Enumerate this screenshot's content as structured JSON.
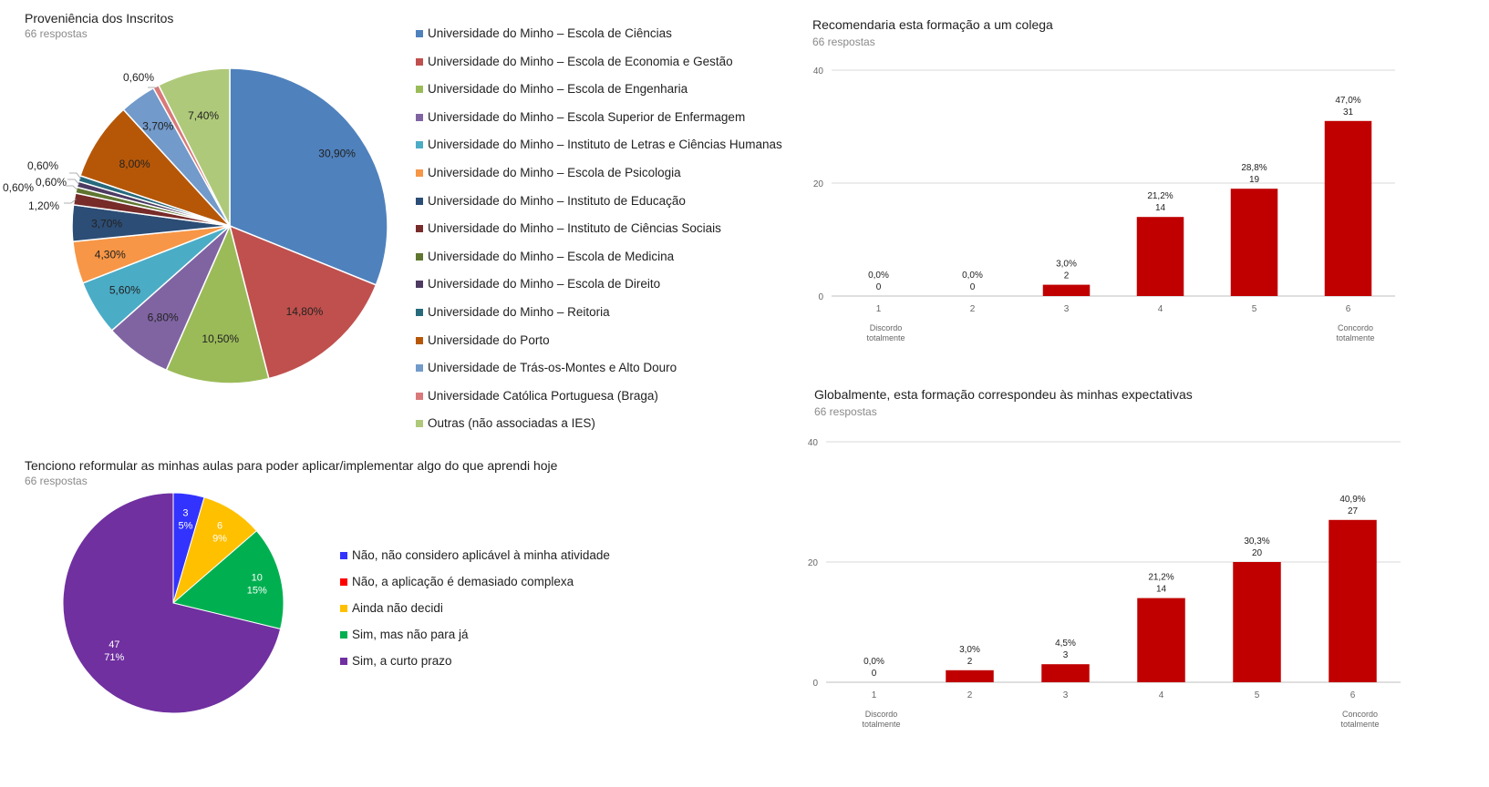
{
  "charts": {
    "provenance": {
      "title": "Proveniência dos Inscritos",
      "subtitle": "66 respostas"
    },
    "reformular": {
      "title": "Tenciono reformular as minhas aulas para poder aplicar/implementar algo do que aprendi hoje",
      "subtitle": "66 respostas"
    },
    "recomendaria": {
      "title": "Recomendaria esta formação a um colega",
      "subtitle": "66 respostas"
    },
    "expectativas": {
      "title": "Globalmente, esta formação correspondeu às minhas expectativas",
      "subtitle": "66 respostas"
    }
  },
  "chart_data": [
    {
      "type": "pie",
      "title": "Proveniência dos Inscritos",
      "subtitle": "66 respostas",
      "labels": [
        "Universidade do Minho – Escola de Ciências",
        "Universidade do Minho – Escola de Economia e Gestão",
        "Universidade do Minho – Escola de Engenharia",
        "Universidade do Minho – Escola Superior de Enfermagem",
        "Universidade do Minho – Instituto de Letras e Ciências Humanas",
        "Universidade do Minho – Escola de Psicologia",
        "Universidade do Minho – Instituto de Educação",
        "Universidade do Minho – Instituto de Ciências Sociais",
        "Universidade do Minho – Escola de Medicina",
        "Universidade do Minho – Escola de Direito",
        "Universidade do Minho – Reitoria",
        "Universidade do Porto",
        "Universidade de Trás-os-Montes e Alto Douro",
        "Universidade Católica Portuguesa (Braga)",
        "Outras (não associadas a IES)"
      ],
      "values": [
        30.9,
        14.8,
        10.5,
        6.8,
        5.6,
        4.3,
        3.7,
        1.2,
        0.6,
        0.6,
        0.6,
        8.0,
        3.7,
        0.6,
        7.4
      ],
      "value_labels": [
        "30,90%",
        "14,80%",
        "10,50%",
        "6,80%",
        "5,60%",
        "4,30%",
        "3,70%",
        "1,20%",
        "0,60%",
        "0,60%",
        "0,60%",
        "8,00%",
        "3,70%",
        "0,60%",
        "7,40%"
      ],
      "colors": [
        "#4f81bd",
        "#c0504d",
        "#9bbb59",
        "#8064a2",
        "#4bacc6",
        "#f79646",
        "#2c4d75",
        "#772c2a",
        "#5f7530",
        "#4d3b62",
        "#276a7c",
        "#b65708",
        "#729aca",
        "#d9797a",
        "#afc97a"
      ],
      "legend": "right"
    },
    {
      "type": "pie",
      "title": "Tenciono reformular as minhas aulas para poder aplicar/implementar algo do que aprendi hoje",
      "subtitle": "66 respostas",
      "labels": [
        "Não, não considero aplicável à minha atividade",
        "Não, a aplicação é demasiado complexa",
        "Ainda não decidi",
        "Sim, mas não para já",
        "Sim, a curto prazo"
      ],
      "values": [
        3,
        0,
        6,
        10,
        47
      ],
      "percent_labels": [
        "5%",
        "0%",
        "9%",
        "15%",
        "71%"
      ],
      "colors": [
        "#3333ff",
        "#ff0000",
        "#ffc000",
        "#00b050",
        "#7030a0"
      ],
      "legend": "right"
    },
    {
      "type": "bar",
      "title": "Recomendaria esta formação a um colega",
      "subtitle": "66 respostas",
      "categories": [
        "1",
        "2",
        "3",
        "4",
        "5",
        "6"
      ],
      "category_notes": [
        "Discordo totalmente",
        "",
        "",
        "",
        "",
        "Concordo totalmente"
      ],
      "values": [
        0,
        0,
        2,
        14,
        19,
        31
      ],
      "percent_labels": [
        "0,0%",
        "0,0%",
        "3,0%",
        "21,2%",
        "28,8%",
        "47,0%"
      ],
      "yticks": [
        0,
        20,
        40
      ],
      "ylim": [
        0,
        40
      ],
      "color": "#c00000",
      "grid": true
    },
    {
      "type": "bar",
      "title": "Globalmente, esta formação correspondeu às minhas expectativas",
      "subtitle": "66 respostas",
      "categories": [
        "1",
        "2",
        "3",
        "4",
        "5",
        "6"
      ],
      "category_notes": [
        "Discordo totalmente",
        "",
        "",
        "",
        "",
        "Concordo totalmente"
      ],
      "values": [
        0,
        2,
        3,
        14,
        20,
        27
      ],
      "percent_labels": [
        "0,0%",
        "3,0%",
        "4,5%",
        "21,2%",
        "30,3%",
        "40,9%"
      ],
      "yticks": [
        0,
        20,
        40
      ],
      "ylim": [
        0,
        40
      ],
      "color": "#c00000",
      "grid": true
    }
  ]
}
